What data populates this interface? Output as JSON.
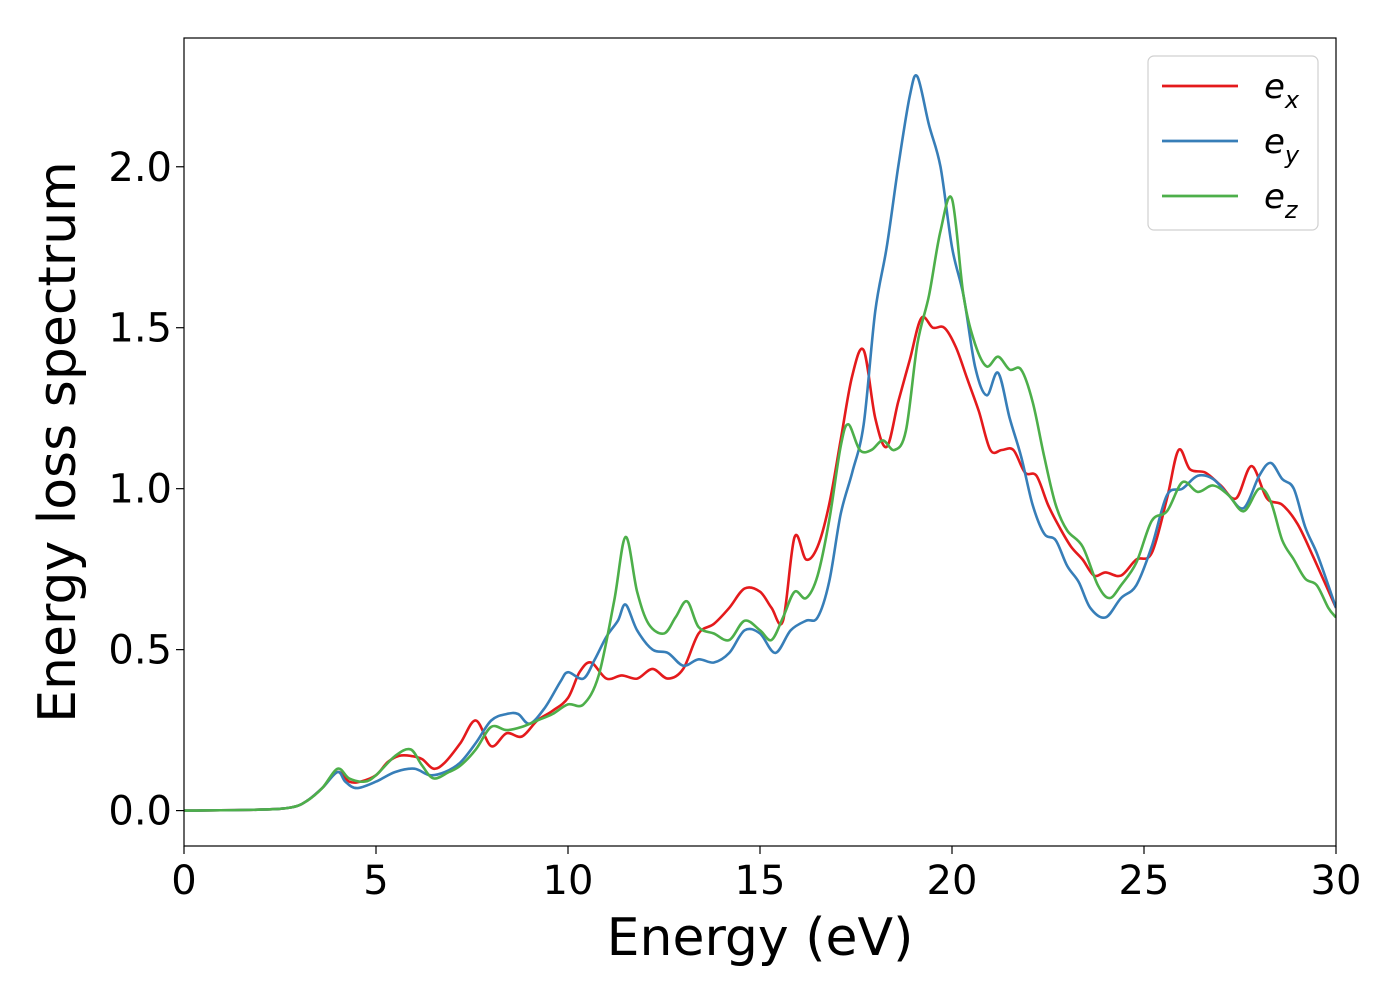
{
  "chart_data": {
    "type": "line",
    "title": "",
    "xlabel": "Energy (eV)",
    "ylabel": "Energy loss spectrum",
    "xlim": [
      0,
      30
    ],
    "ylim": [
      -0.11,
      2.4
    ],
    "xticks": [
      0,
      5,
      10,
      15,
      20,
      25,
      30
    ],
    "xtick_labels": [
      "0",
      "5",
      "10",
      "15",
      "20",
      "25",
      "30"
    ],
    "yticks": [
      0.0,
      0.5,
      1.0,
      1.5,
      2.0
    ],
    "ytick_labels": [
      "0.0",
      "0.5",
      "1.0",
      "1.5",
      "2.0"
    ],
    "grid": false,
    "legend_position": "top-right",
    "series": [
      {
        "name": "e_x",
        "legend_base": "e",
        "legend_sub": "x",
        "color": "#e41a1c",
        "x": [
          0,
          2,
          2.8,
          3.2,
          3.6,
          4.0,
          4.3,
          4.6,
          5.0,
          5.3,
          5.6,
          5.9,
          6.2,
          6.5,
          6.8,
          7.2,
          7.6,
          8.0,
          8.4,
          8.8,
          9.2,
          9.6,
          10.0,
          10.3,
          10.6,
          11.0,
          11.4,
          11.8,
          12.2,
          12.6,
          13.0,
          13.4,
          13.8,
          14.2,
          14.6,
          15.0,
          15.3,
          15.6,
          15.9,
          16.2,
          16.5,
          16.8,
          17.1,
          17.4,
          17.7,
          18.0,
          18.3,
          18.6,
          18.9,
          19.2,
          19.5,
          19.8,
          20.1,
          20.4,
          20.7,
          21.0,
          21.3,
          21.6,
          21.9,
          22.2,
          22.5,
          22.8,
          23.1,
          23.4,
          23.7,
          24.0,
          24.4,
          24.8,
          25.2,
          25.6,
          25.9,
          26.2,
          26.6,
          27.0,
          27.4,
          27.8,
          28.2,
          28.6,
          29.0,
          29.4,
          29.7,
          30.0
        ],
        "y": [
          0.0,
          0.003,
          0.01,
          0.03,
          0.07,
          0.12,
          0.09,
          0.09,
          0.11,
          0.15,
          0.17,
          0.17,
          0.16,
          0.13,
          0.15,
          0.21,
          0.28,
          0.2,
          0.24,
          0.23,
          0.28,
          0.31,
          0.35,
          0.43,
          0.46,
          0.41,
          0.42,
          0.41,
          0.44,
          0.41,
          0.44,
          0.55,
          0.58,
          0.63,
          0.69,
          0.68,
          0.63,
          0.59,
          0.85,
          0.78,
          0.82,
          0.95,
          1.15,
          1.35,
          1.43,
          1.22,
          1.13,
          1.27,
          1.4,
          1.53,
          1.5,
          1.5,
          1.44,
          1.34,
          1.24,
          1.12,
          1.12,
          1.12,
          1.05,
          1.04,
          0.95,
          0.88,
          0.82,
          0.78,
          0.73,
          0.74,
          0.73,
          0.78,
          0.8,
          0.97,
          1.12,
          1.06,
          1.05,
          1.01,
          0.97,
          1.07,
          0.97,
          0.95,
          0.89,
          0.79,
          0.71,
          0.63
        ]
      },
      {
        "name": "e_y",
        "legend_base": "e",
        "legend_sub": "y",
        "color": "#377eb8",
        "x": [
          0,
          2,
          2.8,
          3.2,
          3.6,
          4.0,
          4.2,
          4.5,
          5.0,
          5.5,
          6.0,
          6.4,
          6.8,
          7.2,
          7.6,
          8.0,
          8.4,
          8.7,
          9.0,
          9.4,
          9.8,
          10.0,
          10.4,
          10.7,
          11.0,
          11.3,
          11.5,
          11.8,
          12.2,
          12.6,
          13.0,
          13.4,
          13.8,
          14.2,
          14.6,
          15.0,
          15.4,
          15.8,
          16.2,
          16.5,
          16.8,
          17.1,
          17.4,
          17.7,
          18.0,
          18.3,
          18.6,
          18.9,
          19.1,
          19.4,
          19.7,
          20.0,
          20.3,
          20.6,
          20.9,
          21.2,
          21.5,
          21.8,
          22.1,
          22.4,
          22.7,
          23.0,
          23.3,
          23.6,
          24.0,
          24.4,
          24.8,
          25.2,
          25.6,
          26.0,
          26.4,
          26.8,
          27.2,
          27.6,
          28.0,
          28.3,
          28.6,
          28.9,
          29.2,
          29.5,
          29.8,
          30.0
        ],
        "y": [
          0.0,
          0.003,
          0.01,
          0.03,
          0.07,
          0.12,
          0.09,
          0.07,
          0.09,
          0.12,
          0.13,
          0.11,
          0.12,
          0.15,
          0.21,
          0.28,
          0.3,
          0.3,
          0.27,
          0.32,
          0.4,
          0.43,
          0.41,
          0.47,
          0.54,
          0.59,
          0.64,
          0.56,
          0.5,
          0.49,
          0.45,
          0.47,
          0.46,
          0.49,
          0.56,
          0.55,
          0.49,
          0.56,
          0.59,
          0.6,
          0.71,
          0.92,
          1.05,
          1.2,
          1.55,
          1.75,
          2.0,
          2.22,
          2.28,
          2.13,
          2.0,
          1.75,
          1.6,
          1.38,
          1.29,
          1.36,
          1.22,
          1.1,
          0.95,
          0.86,
          0.84,
          0.76,
          0.71,
          0.63,
          0.6,
          0.66,
          0.7,
          0.82,
          0.98,
          1.0,
          1.04,
          1.03,
          0.98,
          0.94,
          1.04,
          1.08,
          1.03,
          1.0,
          0.88,
          0.8,
          0.7,
          0.63
        ]
      },
      {
        "name": "e_z",
        "legend_base": "e",
        "legend_sub": "z",
        "color": "#4daf4a",
        "x": [
          0,
          2,
          2.8,
          3.2,
          3.6,
          4.0,
          4.3,
          4.7,
          5.0,
          5.5,
          5.9,
          6.2,
          6.5,
          6.9,
          7.2,
          7.6,
          8.0,
          8.4,
          8.8,
          9.2,
          9.6,
          10.0,
          10.4,
          10.8,
          11.2,
          11.5,
          11.8,
          12.1,
          12.5,
          12.8,
          13.1,
          13.4,
          13.8,
          14.2,
          14.6,
          15.0,
          15.3,
          15.6,
          15.9,
          16.2,
          16.5,
          16.8,
          17.1,
          17.3,
          17.6,
          17.9,
          18.2,
          18.5,
          18.8,
          19.1,
          19.4,
          19.7,
          20.0,
          20.3,
          20.6,
          20.9,
          21.2,
          21.5,
          21.8,
          22.1,
          22.4,
          22.7,
          23.0,
          23.4,
          23.8,
          24.1,
          24.4,
          24.8,
          25.2,
          25.6,
          26.0,
          26.4,
          26.8,
          27.2,
          27.6,
          28.0,
          28.3,
          28.6,
          28.9,
          29.2,
          29.5,
          29.8,
          30.0
        ],
        "y": [
          0.0,
          0.003,
          0.01,
          0.03,
          0.07,
          0.13,
          0.1,
          0.09,
          0.11,
          0.17,
          0.19,
          0.14,
          0.1,
          0.12,
          0.14,
          0.19,
          0.26,
          0.25,
          0.26,
          0.28,
          0.3,
          0.33,
          0.33,
          0.42,
          0.65,
          0.85,
          0.68,
          0.58,
          0.55,
          0.6,
          0.65,
          0.57,
          0.55,
          0.53,
          0.59,
          0.56,
          0.53,
          0.6,
          0.68,
          0.66,
          0.73,
          0.9,
          1.13,
          1.2,
          1.12,
          1.12,
          1.15,
          1.12,
          1.18,
          1.45,
          1.6,
          1.8,
          1.9,
          1.6,
          1.45,
          1.38,
          1.41,
          1.37,
          1.37,
          1.27,
          1.1,
          0.95,
          0.87,
          0.82,
          0.7,
          0.66,
          0.7,
          0.77,
          0.9,
          0.93,
          1.02,
          0.99,
          1.01,
          0.98,
          0.93,
          1.0,
          0.96,
          0.84,
          0.78,
          0.72,
          0.7,
          0.63,
          0.6
        ]
      }
    ]
  }
}
